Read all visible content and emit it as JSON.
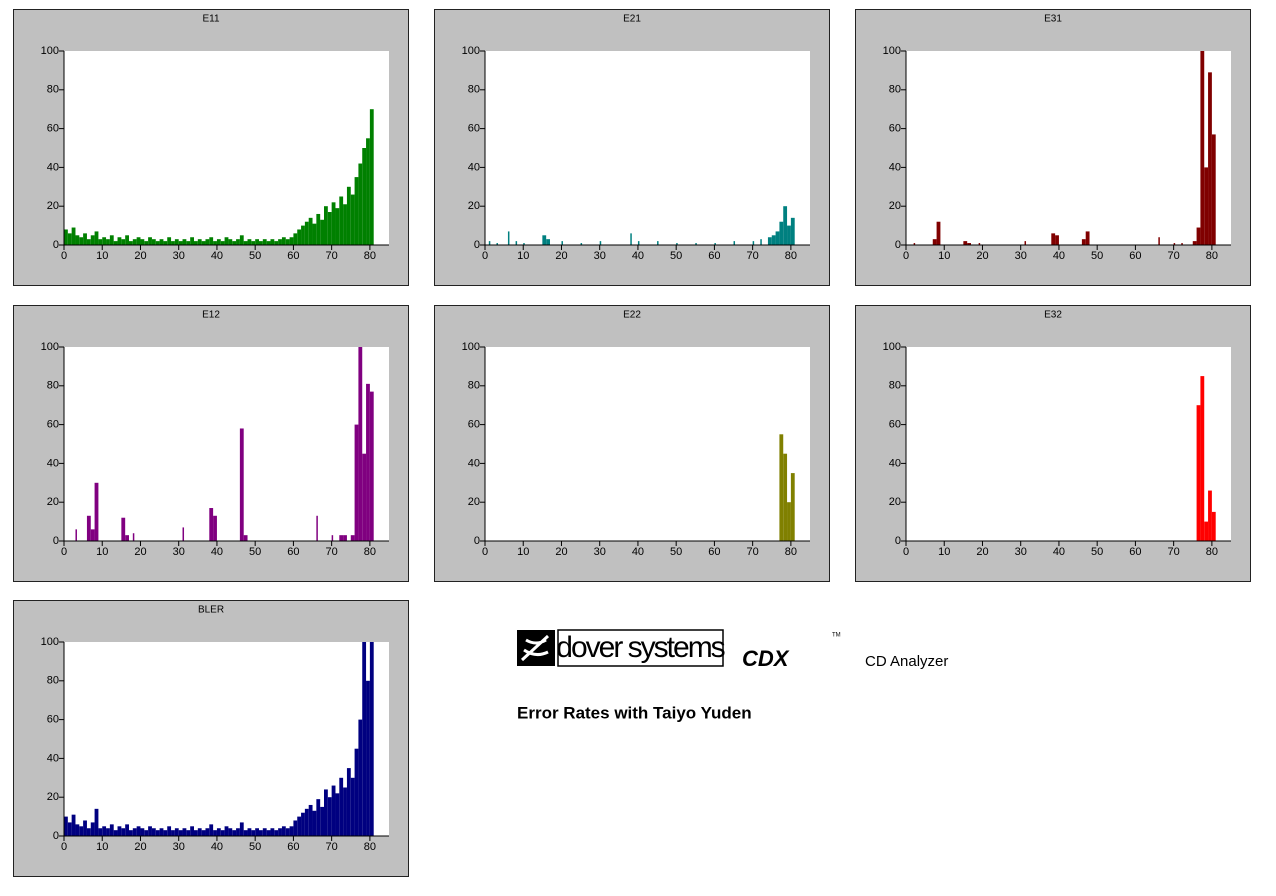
{
  "chart_data": [
    {
      "type": "bar",
      "title": "E11",
      "color": "#008000",
      "xlim": [
        0,
        85
      ],
      "ylim": [
        0,
        100
      ],
      "xticks": [
        0,
        10,
        20,
        30,
        40,
        50,
        60,
        70,
        80
      ],
      "yticks": [
        0,
        20,
        40,
        60,
        80,
        100
      ],
      "x": [
        0,
        1,
        2,
        3,
        4,
        5,
        6,
        7,
        8,
        9,
        10,
        11,
        12,
        13,
        14,
        15,
        16,
        17,
        18,
        19,
        20,
        21,
        22,
        23,
        24,
        25,
        26,
        27,
        28,
        29,
        30,
        31,
        32,
        33,
        34,
        35,
        36,
        37,
        38,
        39,
        40,
        41,
        42,
        43,
        44,
        45,
        46,
        47,
        48,
        49,
        50,
        51,
        52,
        53,
        54,
        55,
        56,
        57,
        58,
        59,
        60,
        61,
        62,
        63,
        64,
        65,
        66,
        67,
        68,
        69,
        70,
        71,
        72,
        73,
        74,
        75,
        76,
        77,
        78,
        79,
        80
      ],
      "values": [
        8,
        6,
        9,
        5,
        4,
        6,
        3,
        5,
        7,
        3,
        4,
        3,
        5,
        2,
        4,
        3,
        5,
        2,
        3,
        4,
        3,
        2,
        4,
        3,
        2,
        3,
        2,
        4,
        2,
        3,
        2,
        3,
        2,
        4,
        2,
        3,
        2,
        3,
        4,
        2,
        3,
        2,
        4,
        3,
        2,
        3,
        5,
        2,
        3,
        2,
        3,
        2,
        3,
        2,
        3,
        2,
        3,
        4,
        3,
        4,
        6,
        8,
        10,
        12,
        14,
        11,
        16,
        13,
        20,
        17,
        22,
        19,
        25,
        21,
        30,
        26,
        35,
        42,
        50,
        55,
        70
      ]
    },
    {
      "type": "bar",
      "title": "E21",
      "color": "#008080",
      "xlim": [
        0,
        85
      ],
      "ylim": [
        0,
        100
      ],
      "xticks": [
        0,
        10,
        20,
        30,
        40,
        50,
        60,
        70,
        80
      ],
      "yticks": [
        0,
        20,
        40,
        60,
        80,
        100
      ],
      "x": [
        1,
        3,
        6,
        8,
        10,
        15,
        16,
        20,
        25,
        30,
        38,
        40,
        45,
        50,
        55,
        60,
        65,
        70,
        72,
        74,
        75,
        76,
        77,
        78,
        79,
        80
      ],
      "values": [
        2,
        1,
        7,
        2,
        1,
        5,
        3,
        2,
        1,
        2,
        6,
        2,
        2,
        1,
        1,
        1,
        2,
        2,
        3,
        4,
        5,
        7,
        12,
        20,
        10,
        14
      ]
    },
    {
      "type": "bar",
      "title": "E31",
      "color": "#800000",
      "xlim": [
        0,
        85
      ],
      "ylim": [
        0,
        100
      ],
      "xticks": [
        0,
        10,
        20,
        30,
        40,
        50,
        60,
        70,
        80
      ],
      "yticks": [
        0,
        20,
        40,
        60,
        80,
        100
      ],
      "x": [
        2,
        7,
        8,
        15,
        16,
        19,
        31,
        38,
        39,
        46,
        47,
        66,
        70,
        72,
        75,
        76,
        77,
        78,
        79,
        80
      ],
      "values": [
        1,
        3,
        12,
        2,
        1,
        1,
        2,
        6,
        5,
        3,
        7,
        4,
        1,
        1,
        2,
        9,
        100,
        40,
        89,
        57
      ]
    },
    {
      "type": "bar",
      "title": "E12",
      "color": "#800080",
      "xlim": [
        0,
        85
      ],
      "ylim": [
        0,
        100
      ],
      "xticks": [
        0,
        10,
        20,
        30,
        40,
        50,
        60,
        70,
        80
      ],
      "yticks": [
        0,
        20,
        40,
        60,
        80,
        100
      ],
      "x": [
        3,
        6,
        7,
        8,
        15,
        16,
        18,
        31,
        38,
        39,
        46,
        47,
        66,
        70,
        72,
        73,
        75,
        76,
        77,
        78,
        79,
        80
      ],
      "values": [
        6,
        13,
        6,
        30,
        12,
        3,
        4,
        7,
        17,
        13,
        58,
        3,
        13,
        3,
        3,
        3,
        3,
        60,
        100,
        45,
        81,
        77
      ]
    },
    {
      "type": "bar",
      "title": "E22",
      "color": "#808000",
      "xlim": [
        0,
        85
      ],
      "ylim": [
        0,
        100
      ],
      "xticks": [
        0,
        10,
        20,
        30,
        40,
        50,
        60,
        70,
        80
      ],
      "yticks": [
        0,
        20,
        40,
        60,
        80,
        100
      ],
      "x": [
        77,
        78,
        79,
        80
      ],
      "values": [
        55,
        45,
        20,
        35
      ]
    },
    {
      "type": "bar",
      "title": "E32",
      "color": "#ff0000",
      "xlim": [
        0,
        85
      ],
      "ylim": [
        0,
        100
      ],
      "xticks": [
        0,
        10,
        20,
        30,
        40,
        50,
        60,
        70,
        80
      ],
      "yticks": [
        0,
        20,
        40,
        60,
        80,
        100
      ],
      "x": [
        76,
        77,
        78,
        79,
        80
      ],
      "values": [
        70,
        85,
        10,
        26,
        15
      ]
    },
    {
      "type": "bar",
      "title": "BLER",
      "color": "#000080",
      "xlim": [
        0,
        85
      ],
      "ylim": [
        0,
        100
      ],
      "xticks": [
        0,
        10,
        20,
        30,
        40,
        50,
        60,
        70,
        80
      ],
      "yticks": [
        0,
        20,
        40,
        60,
        80,
        100
      ],
      "x": [
        0,
        1,
        2,
        3,
        4,
        5,
        6,
        7,
        8,
        9,
        10,
        11,
        12,
        13,
        14,
        15,
        16,
        17,
        18,
        19,
        20,
        21,
        22,
        23,
        24,
        25,
        26,
        27,
        28,
        29,
        30,
        31,
        32,
        33,
        34,
        35,
        36,
        37,
        38,
        39,
        40,
        41,
        42,
        43,
        44,
        45,
        46,
        47,
        48,
        49,
        50,
        51,
        52,
        53,
        54,
        55,
        56,
        57,
        58,
        59,
        60,
        61,
        62,
        63,
        64,
        65,
        66,
        67,
        68,
        69,
        70,
        71,
        72,
        73,
        74,
        75,
        76,
        77,
        78,
        79,
        80
      ],
      "values": [
        10,
        7,
        11,
        6,
        5,
        8,
        4,
        7,
        14,
        4,
        5,
        4,
        6,
        3,
        5,
        4,
        6,
        3,
        4,
        5,
        4,
        3,
        5,
        4,
        3,
        4,
        3,
        5,
        3,
        4,
        3,
        4,
        3,
        5,
        3,
        4,
        3,
        4,
        6,
        3,
        4,
        3,
        5,
        4,
        3,
        4,
        7,
        3,
        4,
        3,
        4,
        3,
        4,
        3,
        4,
        3,
        4,
        5,
        4,
        5,
        8,
        10,
        12,
        14,
        16,
        13,
        19,
        15,
        24,
        20,
        26,
        22,
        30,
        25,
        35,
        30,
        45,
        60,
        100,
        80,
        100
      ]
    }
  ],
  "branding": {
    "logo": "dover systems",
    "product": "CDX",
    "trademark": "TM",
    "product_name": "CD Analyzer",
    "caption": "Error Rates with Taiyo Yuden"
  }
}
